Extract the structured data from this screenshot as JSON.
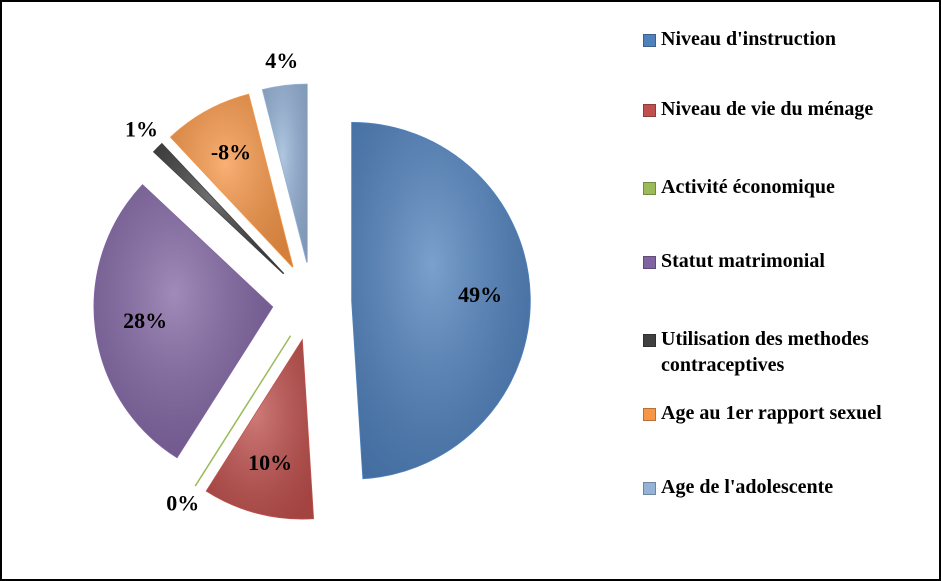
{
  "chart_data": {
    "type": "pie",
    "categories": [
      "Niveau d'instruction",
      "Niveau de vie du ménage",
      "Activité économique",
      "Statut matrimonial",
      "Utilisation des methodes contraceptives",
      "Age au 1er rapport sexuel",
      "Age de l'adolescente"
    ],
    "values": [
      49,
      10,
      0,
      28,
      1,
      -8,
      4
    ],
    "value_labels": [
      "49%",
      "10%",
      "0%",
      "28%",
      "1%",
      "-8%",
      "4%"
    ],
    "colors": [
      "#4f81bd",
      "#c0504d",
      "#9bbb59",
      "#8064a2",
      "#404040",
      "#f79646",
      "#95b3d7"
    ],
    "legend": "right"
  }
}
